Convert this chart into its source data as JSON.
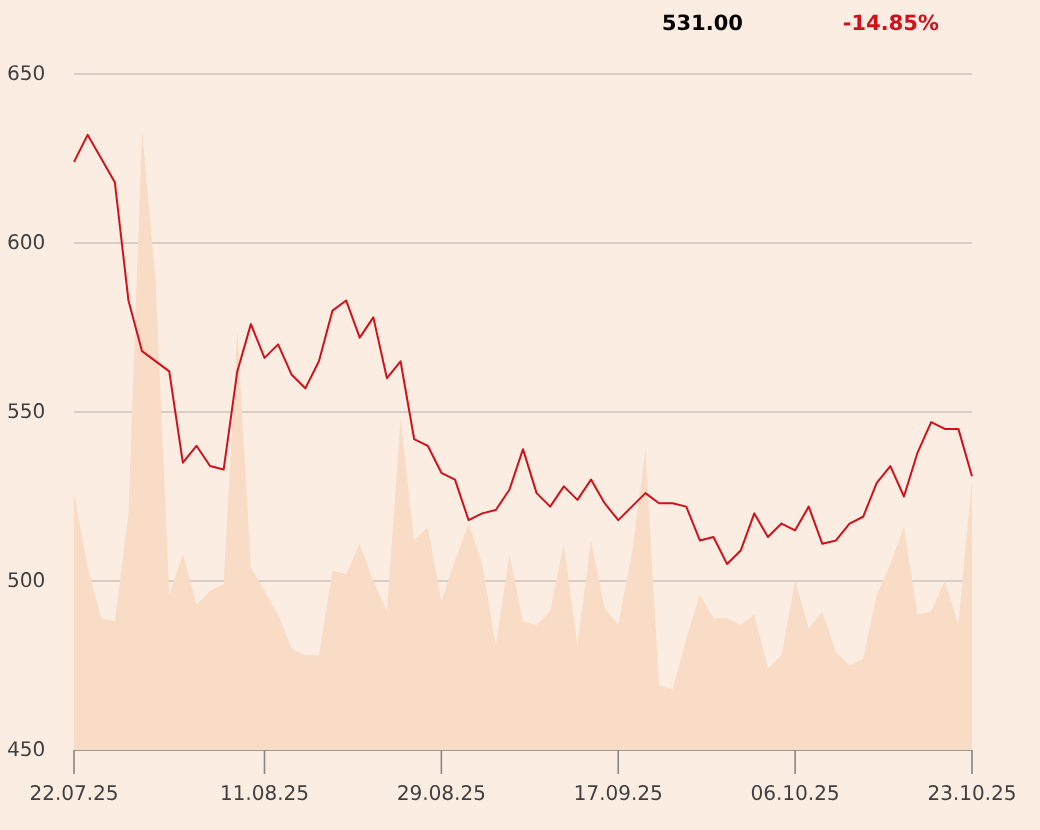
{
  "chart_data": {
    "type": "line",
    "annotations": [
      "531.00",
      "-14.85%"
    ],
    "categories": [
      "22.07.25",
      null,
      null,
      null,
      null,
      null,
      null,
      null,
      null,
      null,
      null,
      null,
      null,
      null,
      "11.08.25",
      null,
      null,
      null,
      null,
      null,
      null,
      null,
      null,
      null,
      null,
      null,
      null,
      "29.08.25",
      null,
      null,
      null,
      null,
      null,
      null,
      null,
      null,
      null,
      null,
      null,
      null,
      "17.09.25",
      null,
      null,
      null,
      null,
      null,
      null,
      null,
      null,
      null,
      null,
      null,
      null,
      "06.10.25",
      null,
      null,
      null,
      null,
      null,
      null,
      null,
      null,
      null,
      null,
      null,
      null,
      "23.10.25"
    ],
    "series": [
      {
        "type": "area",
        "color": "#f8dcc5",
        "values": [
          526,
          504,
          489,
          488,
          520,
          633,
          589,
          496,
          508,
          493,
          497,
          499,
          574,
          504,
          497,
          490,
          480,
          478,
          478,
          503,
          502,
          511,
          500,
          491,
          548,
          512,
          516,
          494,
          506,
          517,
          505,
          481,
          508,
          488,
          487,
          491,
          511,
          481,
          512,
          492,
          487,
          508,
          539,
          469,
          468,
          483,
          496,
          489,
          489,
          487,
          490,
          474,
          478,
          500,
          486,
          491,
          479,
          475,
          477,
          496,
          505,
          516,
          490,
          491,
          500,
          487,
          530
        ]
      },
      {
        "color": "#d0101b",
        "values": [
          624,
          632,
          625,
          618,
          583,
          568,
          565,
          562,
          535,
          540,
          534,
          533,
          562,
          576,
          566,
          570,
          561,
          557,
          565,
          580,
          583,
          572,
          578,
          560,
          565,
          542,
          540,
          532,
          530,
          518,
          520,
          521,
          527,
          539,
          526,
          522,
          528,
          524,
          530,
          523,
          518,
          522,
          526,
          523,
          523,
          522,
          512,
          513,
          505,
          509,
          520,
          513,
          517,
          515,
          522,
          511,
          512,
          517,
          519,
          529,
          534,
          525,
          538,
          547,
          545,
          545,
          531
        ]
      }
    ],
    "ylim": [
      450,
      650
    ],
    "yticks": [
      450,
      500,
      550,
      600,
      650
    ],
    "grid": "y"
  }
}
